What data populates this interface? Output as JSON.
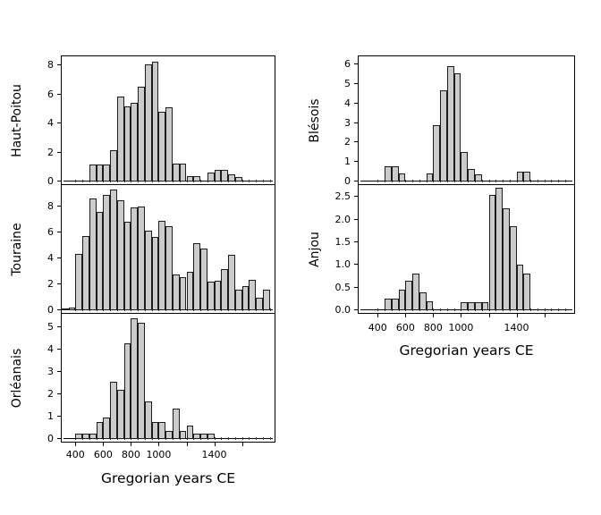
{
  "figure": {
    "xlabel": "Gregorian years CE",
    "colors": {
      "background": "#ffffff",
      "bar_fill": "#cccccc",
      "bar_edge": "#1c1c1c",
      "axis": "#000000"
    },
    "xticks": [
      {
        "year": 400,
        "label": "400"
      },
      {
        "year": 600,
        "label": "600"
      },
      {
        "year": 800,
        "label": "800"
      },
      {
        "year": 1000,
        "label": "1000"
      },
      {
        "year": 1200,
        "label": ""
      },
      {
        "year": 1400,
        "label": "1400"
      },
      {
        "year": 1600,
        "label": ""
      }
    ]
  },
  "chart_data": [
    {
      "type": "bar",
      "subtype": "histogram",
      "region": "Haut-Poitou",
      "xlabel": "Gregorian years CE",
      "bin_start_year": 500,
      "bin_width_years": 50,
      "x_range": [
        500,
        1600
      ],
      "yticks": [
        "0",
        "2",
        "4",
        "6",
        "8"
      ],
      "ylim": [
        0,
        8.7
      ],
      "values": [
        1.15,
        1.15,
        1.15,
        2.15,
        5.85,
        5.2,
        5.4,
        6.55,
        8.05,
        8.25,
        4.8,
        5.1,
        1.25,
        1.25,
        0.4,
        0.4,
        0,
        0.6,
        0.8,
        0.8,
        0.5,
        0.3
      ]
    },
    {
      "type": "bar",
      "subtype": "histogram",
      "region": "Touraine",
      "xlabel": "Gregorian years CE",
      "bin_start_year": 300,
      "bin_width_years": 50,
      "x_range": [
        300,
        1800
      ],
      "yticks": [
        "0",
        "2",
        "4",
        "6",
        "8"
      ],
      "ylim": [
        0,
        9.7
      ],
      "values": [
        0.15,
        0.2,
        4.35,
        5.7,
        8.6,
        7.6,
        8.9,
        9.3,
        8.5,
        6.8,
        7.95,
        8.0,
        6.15,
        5.65,
        6.9,
        6.45,
        2.75,
        2.55,
        3.0,
        5.2,
        4.75,
        2.2,
        2.25,
        3.15,
        4.25,
        1.6,
        1.85,
        2.35,
        1.0,
        1.6
      ]
    },
    {
      "type": "bar",
      "subtype": "histogram",
      "region": "Orléanais",
      "xlabel": "Gregorian years CE",
      "bin_start_year": 400,
      "bin_width_years": 50,
      "x_range": [
        400,
        1400
      ],
      "yticks": [
        "0",
        "1",
        "2",
        "3",
        "4",
        "5"
      ],
      "ylim": [
        0,
        5.6
      ],
      "values": [
        0.25,
        0.25,
        0.25,
        0.75,
        0.95,
        2.55,
        2.2,
        4.3,
        5.4,
        5.2,
        1.7,
        0.75,
        0.75,
        0.35,
        1.35,
        0.35,
        0.6,
        0.25,
        0.25,
        0.25
      ]
    },
    {
      "type": "bar",
      "subtype": "histogram",
      "region": "Blésois",
      "xlabel": "Gregorian years CE",
      "bin_start_year": 450,
      "bin_width_years": 50,
      "x_range": [
        450,
        1500
      ],
      "yticks": [
        "0",
        "1",
        "2",
        "3",
        "4",
        "5",
        "6"
      ],
      "ylim": [
        0,
        6.4
      ],
      "values": [
        0.8,
        0.8,
        0.4,
        0,
        0,
        0,
        0.4,
        2.9,
        4.7,
        5.9,
        5.55,
        1.5,
        0.65,
        0.35,
        0,
        0,
        0,
        0,
        0,
        0.5,
        0.5
      ]
    },
    {
      "type": "bar",
      "subtype": "histogram",
      "region": "Anjou",
      "xlabel": "Gregorian years CE",
      "bin_start_year": 450,
      "bin_width_years": 50,
      "x_range": [
        450,
        1500
      ],
      "yticks": [
        "0.0",
        "0.5",
        "1.0",
        "1.5",
        "2.0",
        "2.5"
      ],
      "ylim": [
        0,
        2.78
      ],
      "values": [
        0.25,
        0.25,
        0.45,
        0.65,
        0.8,
        0.4,
        0.2,
        0,
        0,
        0,
        0,
        0.17,
        0.17,
        0.17,
        0.17,
        2.55,
        2.7,
        2.25,
        1.85,
        1.0,
        0.8
      ]
    }
  ]
}
